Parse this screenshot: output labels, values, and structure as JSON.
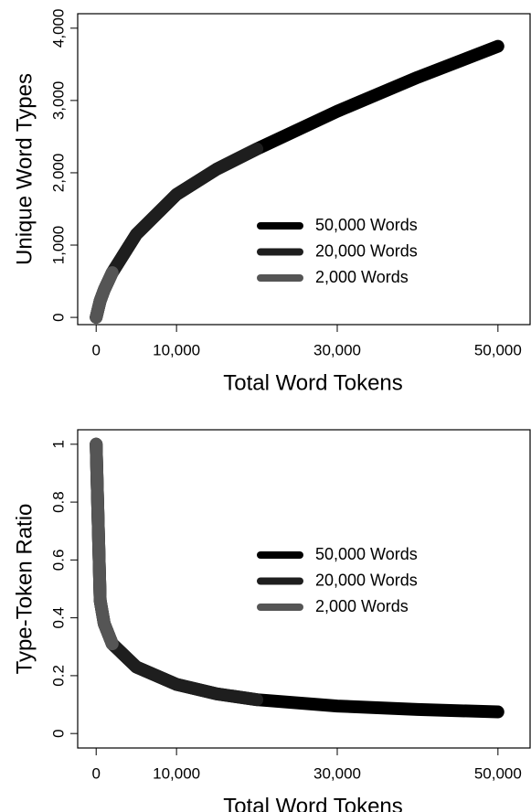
{
  "chart_data": [
    {
      "type": "line",
      "xlabel": "Total Word Tokens",
      "ylabel": "Unique Word Types",
      "x": [
        1,
        500,
        1000,
        2000,
        5000,
        10000,
        15000,
        20000,
        30000,
        40000,
        50000
      ],
      "series": [
        {
          "name": "50,000 Words",
          "color": "#000000",
          "values": [
            1,
            230,
            380,
            620,
            1150,
            1700,
            2050,
            2330,
            2850,
            3320,
            3750
          ]
        },
        {
          "name": "20,000 Words",
          "color": "#1e1e1e",
          "values": [
            1,
            230,
            380,
            620,
            1150,
            1700,
            2050,
            2330,
            null,
            null,
            null
          ]
        },
        {
          "name": "2,000 Words",
          "color": "#555555",
          "values": [
            1,
            230,
            380,
            620,
            null,
            null,
            null,
            null,
            null,
            null,
            null
          ]
        }
      ],
      "xlim": [
        -2300,
        54000
      ],
      "xticks": [
        {
          "value": 0,
          "label": "0"
        },
        {
          "value": 10000,
          "label": "10,000"
        },
        {
          "value": 30000,
          "label": "30,000"
        },
        {
          "value": 50000,
          "label": "50,000"
        }
      ],
      "ylim": [
        -100,
        4200
      ],
      "yticks": [
        0,
        {
          "value": 1000,
          "label": "1,000"
        },
        {
          "value": 2000,
          "label": "2,000"
        },
        {
          "value": 3000,
          "label": "3,000"
        },
        {
          "value": 4000,
          "label": "4,000"
        }
      ]
    },
    {
      "type": "line",
      "xlabel": "Total Word Tokens",
      "ylabel": "Type-Token Ratio",
      "x": [
        1,
        500,
        1000,
        2000,
        5000,
        10000,
        15000,
        20000,
        30000,
        40000,
        50000
      ],
      "series": [
        {
          "name": "50,000 Words",
          "color": "#000000",
          "values": [
            1,
            0.46,
            0.38,
            0.31,
            0.23,
            0.17,
            0.137,
            0.117,
            0.095,
            0.083,
            0.075
          ]
        },
        {
          "name": "20,000 Words",
          "color": "#1e1e1e",
          "values": [
            1,
            0.46,
            0.38,
            0.31,
            0.23,
            0.17,
            0.137,
            0.117,
            null,
            null,
            null
          ]
        },
        {
          "name": "2,000 Words",
          "color": "#555555",
          "values": [
            1,
            0.46,
            0.38,
            0.31,
            null,
            null,
            null,
            null,
            null,
            null,
            null
          ]
        }
      ],
      "xlim": [
        -2300,
        54000
      ],
      "xticks": [
        {
          "value": 0,
          "label": "0"
        },
        {
          "value": 10000,
          "label": "10,000"
        },
        {
          "value": 30000,
          "label": "30,000"
        },
        {
          "value": 50000,
          "label": "50,000"
        }
      ],
      "ylim": [
        -0.05,
        1.05
      ],
      "yticks": [
        0,
        0.2,
        0.4,
        0.6,
        0.8,
        1
      ]
    }
  ]
}
